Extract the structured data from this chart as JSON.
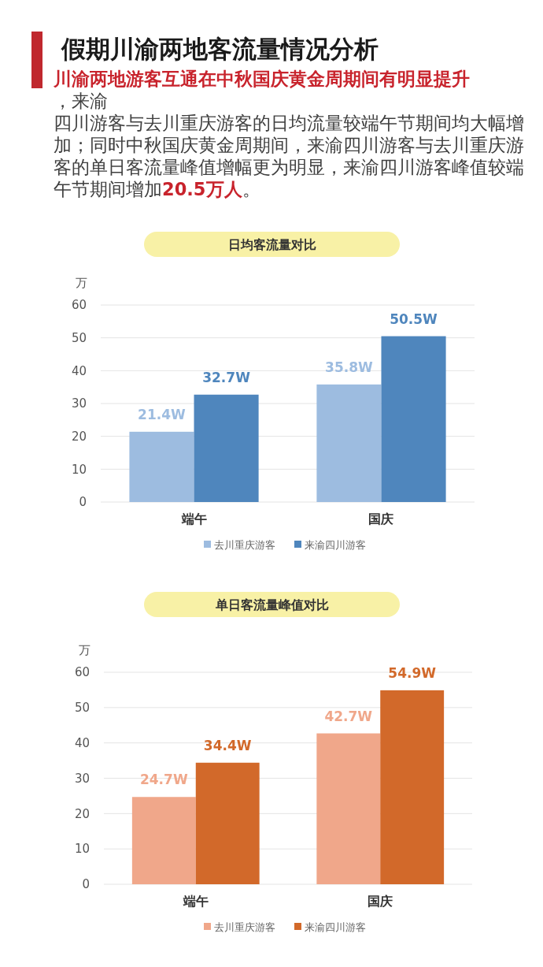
{
  "chart_data": [
    {
      "type": "other",
      "title": "假期川渝两地客流量情况分析",
      "annotations": [
        "川渝两地游客互通在中秋国庆黄金周期间有明显提升",
        "，来渝",
        "四川游客与去川重庆游客的日均流量较端午节期间均大幅增",
        "加；同时中秋国庆黄金周期间，来渝四川游客与去川重庆游",
        "客的单日客流量峰值增幅更为明显，来渝四川游客峰值较端",
        "午节期间增加",
        "20.5万人",
        "。"
      ]
    },
    {
      "type": "bar",
      "title": "日均客流量对比",
      "ylabel": "万",
      "categories": [
        "端午",
        "国庆"
      ],
      "series": [
        {
          "name": "去川重庆游客",
          "color": "#9dbce0",
          "values": [
            21.4,
            35.8
          ],
          "value_labels": [
            "21.4W",
            "35.8W"
          ]
        },
        {
          "name": "来渝四川游客",
          "color": "#4f86bd",
          "values": [
            32.7,
            50.5
          ],
          "value_labels": [
            "32.7W",
            "50.5W"
          ]
        }
      ],
      "ylim": [
        0,
        60
      ],
      "yticks": [
        0,
        10,
        20,
        30,
        40,
        50,
        60
      ],
      "grid": "y",
      "legend": "bottom"
    },
    {
      "type": "bar",
      "title": "单日客流量峰值对比",
      "ylabel": "万",
      "categories": [
        "端午",
        "国庆"
      ],
      "series": [
        {
          "name": "去川重庆游客",
          "color": "#f0a78a",
          "values": [
            24.7,
            42.7
          ],
          "value_labels": [
            "24.7W",
            "42.7W"
          ]
        },
        {
          "name": "来渝四川游客",
          "color": "#d2692a",
          "values": [
            34.4,
            54.9
          ],
          "value_labels": [
            "34.4W",
            "54.9W"
          ]
        }
      ],
      "ylim": [
        0,
        60
      ],
      "yticks": [
        0,
        10,
        20,
        30,
        40,
        50,
        60
      ],
      "grid": "y",
      "legend": "bottom"
    }
  ]
}
